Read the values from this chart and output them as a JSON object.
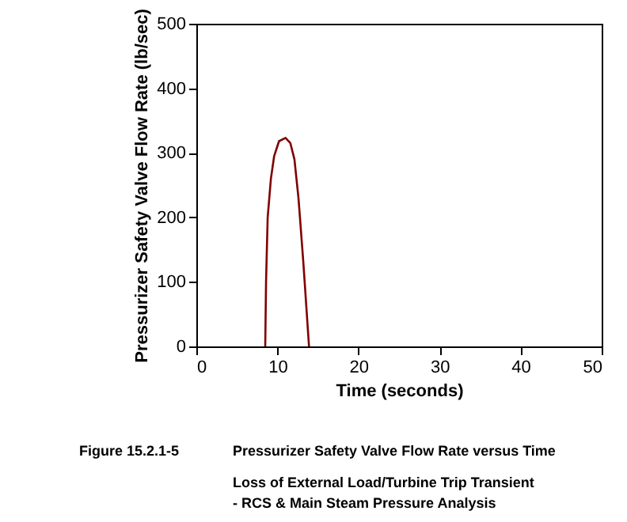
{
  "chart_data": {
    "type": "line",
    "xlabel": "Time (seconds)",
    "ylabel": "Pressurizer Safety Valve Flow Rate (lb/sec)",
    "xlim": [
      0,
      50
    ],
    "xticks": [
      0,
      10,
      20,
      30,
      40,
      50
    ],
    "ylim": [
      0,
      500
    ],
    "yticks": [
      0,
      100,
      200,
      300,
      400,
      500
    ],
    "grid": false,
    "series": [
      {
        "color": "#800000",
        "x": [
          8.5,
          8.6,
          8.8,
          9.2,
          9.6,
          10.2,
          11.0,
          11.6,
          12.1,
          12.6,
          13.2,
          13.9
        ],
        "values": [
          0,
          100,
          200,
          260,
          295,
          318,
          323,
          315,
          290,
          230,
          130,
          0
        ]
      }
    ],
    "annotations": [
      "Figure 15.2.1-5",
      "Pressurizer Safety Valve Flow Rate versus Time",
      "Loss of External Load/Turbine Trip Transient",
      "- RCS & Main Steam Pressure Analysis"
    ]
  }
}
